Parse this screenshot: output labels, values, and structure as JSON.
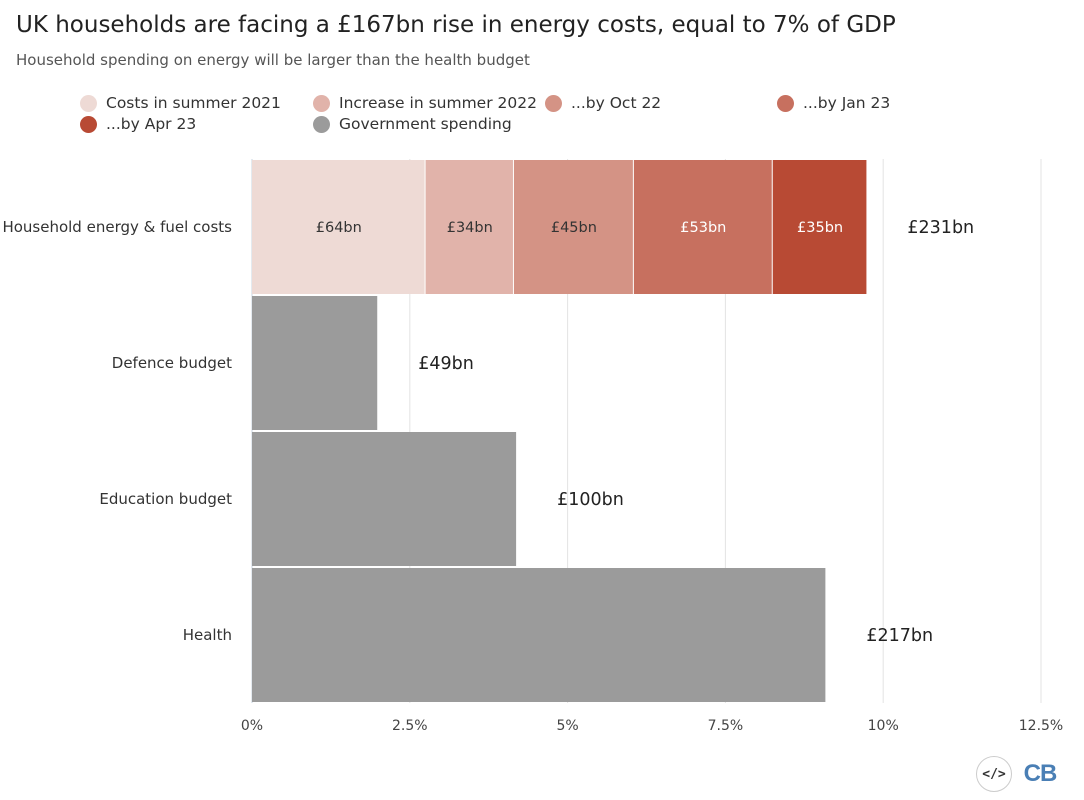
{
  "chart_data": {
    "type": "bar",
    "orientation": "horizontal",
    "stacked": true,
    "title": "UK households are facing a £167bn rise in energy costs, equal to 7% of GDP",
    "subtitle": "Household spending on energy will be larger than the health budget",
    "categories": [
      "Household energy & fuel costs",
      "Defence budget",
      "Education budget",
      "Health"
    ],
    "x_unit": "% of GDP",
    "xlim": [
      0,
      12.5
    ],
    "xticks": [
      0,
      2.5,
      5,
      7.5,
      10,
      12.5
    ],
    "xtick_labels": [
      "0%",
      "2.5%",
      "5%",
      "7.5%",
      "10%",
      "12.5%"
    ],
    "grid": true,
    "legend_position": "top",
    "series": [
      {
        "name": "Costs in summer 2021",
        "color": "#eedad5",
        "values": [
          2.75,
          null,
          null,
          null
        ],
        "labels": [
          "£64bn",
          null,
          null,
          null
        ],
        "label_color": "#333333"
      },
      {
        "name": "Increase in summer 2022",
        "color": "#e1b3aa",
        "values": [
          1.4,
          null,
          null,
          null
        ],
        "labels": [
          "£34bn",
          null,
          null,
          null
        ],
        "label_color": "#333333"
      },
      {
        "name": "...by Oct 22",
        "color": "#d49385",
        "values": [
          1.9,
          null,
          null,
          null
        ],
        "labels": [
          "£45bn",
          null,
          null,
          null
        ],
        "label_color": "#333333"
      },
      {
        "name": "...by Jan 23",
        "color": "#c7705f",
        "values": [
          2.2,
          null,
          null,
          null
        ],
        "labels": [
          "£53bn",
          null,
          null,
          null
        ],
        "label_color": "#ffffff"
      },
      {
        "name": "...by Apr 23",
        "color": "#b84a34",
        "values": [
          1.5,
          null,
          null,
          null
        ],
        "labels": [
          "£35bn",
          null,
          null,
          null
        ],
        "label_color": "#ffffff"
      },
      {
        "name": "Government spending",
        "color": "#9b9b9b",
        "values": [
          null,
          2.0,
          4.2,
          9.1
        ],
        "labels": [
          null,
          null,
          null,
          null
        ],
        "label_color": "#333333"
      }
    ],
    "totals": [
      {
        "value": 9.75,
        "label": "£231bn"
      },
      {
        "value": 2.0,
        "label": "£49bn"
      },
      {
        "value": 4.2,
        "label": "£100bn"
      },
      {
        "value": 9.1,
        "label": "£217bn"
      }
    ]
  },
  "logos": {
    "code_icon": "</>",
    "brand": "CB"
  }
}
